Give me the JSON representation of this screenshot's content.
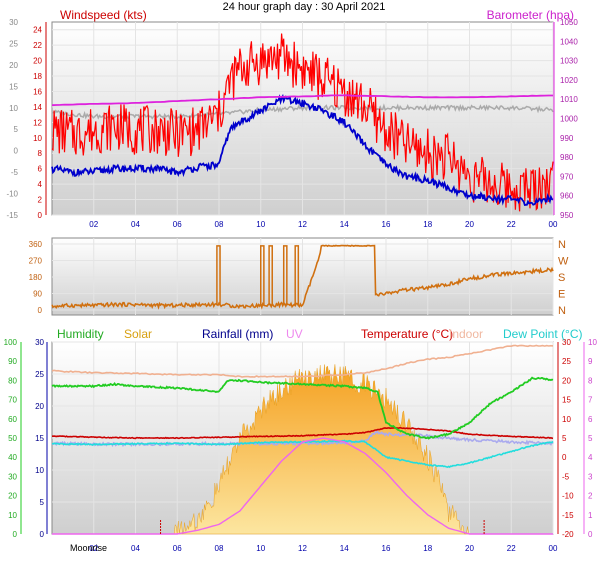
{
  "page_title": "24 hour graph day : 30 April 2021",
  "colors": {
    "wind_avg": "#0000cc",
    "wind_gust": "#ff0000",
    "pressure": "#dd22dd",
    "temperature": "#cc0000",
    "indoor": "#f0b090",
    "humidity": "#22cc22",
    "solar": "#f0b020",
    "rainfall": "#0000aa",
    "uv": "#ee66ee",
    "dewpoint": "#22dddd",
    "direction": "#d07010",
    "grey_trace": "#aaaaaa"
  },
  "chart_data": [
    {
      "type": "line",
      "panel": "wind",
      "title": "24 hour graph day : 30 April 2021",
      "legend": {
        "left": "Windspeed (kts)",
        "right": "Barometer (hpa)"
      },
      "x_ticks": [
        "02",
        "04",
        "06",
        "08",
        "10",
        "12",
        "14",
        "16",
        "18",
        "20",
        "22",
        "00"
      ],
      "x_range_hours": [
        0,
        24
      ],
      "y_left": {
        "ticks": [
          "0",
          "2",
          "4",
          "6",
          "8",
          "10",
          "12",
          "14",
          "16",
          "18",
          "20",
          "22",
          "24"
        ],
        "range": [
          0,
          25
        ]
      },
      "y_outer": {
        "ticks": [
          "-15",
          "-10",
          "-5",
          "0",
          "5",
          "10",
          "15",
          "20",
          "25",
          "30"
        ],
        "range": [
          -15,
          30
        ]
      },
      "y_right": {
        "ticks": [
          "950",
          "960",
          "970",
          "980",
          "990",
          "1000",
          "1010",
          "1020",
          "1030",
          "1040",
          "1050"
        ],
        "range": [
          950,
          1050
        ]
      },
      "series": [
        {
          "name": "Windspeed (kts)",
          "x": [
            0,
            1,
            2,
            3,
            4,
            5,
            6,
            7,
            8,
            8.5,
            9,
            10,
            11,
            12,
            13,
            14,
            15,
            16,
            17,
            18,
            19,
            20,
            21,
            22,
            23,
            24
          ],
          "values": [
            6,
            5.5,
            5.6,
            6,
            6,
            6,
            5.5,
            6.2,
            6.5,
            11,
            12,
            13.5,
            15,
            14.5,
            13.5,
            12,
            9,
            6.5,
            5,
            4.5,
            3.5,
            2.5,
            2.3,
            2,
            1.5,
            2.3
          ]
        },
        {
          "name": "gust",
          "x": [
            0,
            1,
            2,
            3,
            4,
            5,
            6,
            7,
            8,
            8.5,
            9,
            10,
            11,
            12,
            13,
            14,
            15,
            16,
            17,
            18,
            19,
            20,
            21,
            22,
            23,
            24
          ],
          "values": [
            11,
            10.5,
            11,
            11.5,
            11,
            11,
            10.5,
            11,
            13,
            17,
            19,
            20,
            20.5,
            19,
            17.5,
            16,
            14,
            11,
            9,
            8,
            7.5,
            5,
            4,
            3.5,
            3.5,
            4.5
          ]
        },
        {
          "name": "Barometer (hpa)",
          "x": [
            0,
            2,
            4,
            6,
            8,
            10,
            12,
            14,
            16,
            18,
            20,
            22,
            24
          ],
          "values": [
            1007,
            1007.5,
            1008,
            1009,
            1010,
            1011,
            1011.5,
            1012,
            1011.5,
            1011,
            1011,
            1011.5,
            1012
          ]
        },
        {
          "name": "grey",
          "x": [
            0,
            2,
            4,
            6,
            8,
            10,
            12,
            14,
            16,
            18,
            20,
            22,
            24
          ],
          "values": [
            9,
            8,
            8,
            8,
            8.5,
            9.5,
            10,
            10,
            10,
            10,
            10,
            10,
            9.5
          ]
        }
      ]
    },
    {
      "type": "line",
      "panel": "direction",
      "x_range_hours": [
        0,
        24
      ],
      "y_left": {
        "ticks": [
          "0",
          "90",
          "180",
          "270",
          "360"
        ],
        "range": [
          0,
          360
        ]
      },
      "y_right_labels": [
        "N",
        "W",
        "S",
        "E",
        "N"
      ],
      "series": [
        {
          "name": "wind direction",
          "x": [
            0,
            1,
            2,
            3,
            4,
            5,
            6,
            7,
            8,
            9,
            10,
            11,
            12,
            13,
            14,
            15,
            15.5,
            16,
            17,
            18,
            19,
            20,
            21,
            22,
            23,
            24
          ],
          "values": [
            20,
            25,
            25,
            30,
            30,
            25,
            25,
            30,
            30,
            20,
            25,
            30,
            25,
            350,
            350,
            350,
            80,
            90,
            110,
            120,
            140,
            170,
            190,
            200,
            210,
            220
          ]
        }
      ]
    },
    {
      "type": "area",
      "panel": "environment",
      "legend": [
        "Humidity",
        "Solar",
        "Rainfall (mm)",
        "UV",
        "Temperature (°C)",
        "Indoor",
        "Dew Point (°C)"
      ],
      "x_range_hours": [
        0,
        24
      ],
      "y_hum": {
        "ticks": [
          "0",
          "10",
          "20",
          "30",
          "40",
          "50",
          "60",
          "70",
          "80",
          "90",
          "100"
        ],
        "range": [
          0,
          100
        ]
      },
      "y_rain": {
        "ticks": [
          "0",
          "5",
          "10",
          "15",
          "20",
          "25",
          "30"
        ],
        "range": [
          0,
          30
        ]
      },
      "y_temp": {
        "ticks": [
          "-20",
          "-15",
          "-10",
          "-5",
          "0",
          "5",
          "10",
          "15",
          "20",
          "25",
          "30"
        ],
        "range": [
          -20,
          30
        ]
      },
      "y_uv": {
        "ticks": [
          "0",
          "1",
          "2",
          "3",
          "4",
          "5",
          "6",
          "7",
          "8",
          "9",
          "10"
        ],
        "range": [
          0,
          10
        ]
      },
      "footer_label": "Moonrise",
      "moon_ticks_x": [
        5.2,
        20.7
      ],
      "series": [
        {
          "name": "Humidity",
          "x": [
            0,
            2,
            3,
            4,
            6,
            7,
            8,
            8.4,
            9,
            10,
            12,
            14,
            15,
            15.6,
            16,
            17,
            18,
            19,
            20,
            21,
            22,
            23,
            23.5,
            24
          ],
          "values": [
            77,
            77,
            78,
            77,
            76,
            75,
            74,
            80,
            80,
            79,
            78,
            77,
            76,
            74,
            58,
            52,
            50,
            52,
            58,
            68,
            74,
            81,
            81,
            80
          ]
        },
        {
          "name": "Solar",
          "x": [
            0,
            5,
            5.8,
            6,
            7,
            7.5,
            8,
            9,
            9.5,
            10,
            11,
            12,
            13,
            14,
            15,
            15.5,
            16,
            17,
            18,
            18.5,
            19,
            19.5,
            20,
            24
          ],
          "values": [
            0,
            0,
            0,
            2,
            8,
            14,
            25,
            50,
            55,
            65,
            75,
            82,
            83,
            82,
            78,
            74,
            70,
            58,
            40,
            28,
            12,
            6,
            0,
            0
          ]
        },
        {
          "name": "Temperature (°C)",
          "x": [
            0,
            2,
            4,
            6,
            8,
            10,
            12,
            14,
            15,
            16,
            17,
            18,
            19,
            20,
            22,
            24
          ],
          "values": [
            5.5,
            5.2,
            5.0,
            5.0,
            5.2,
            5.4,
            5.6,
            6.0,
            6.4,
            7.6,
            7.6,
            7.2,
            6.8,
            6.0,
            5.4,
            5.0
          ]
        },
        {
          "name": "Indoor",
          "x": [
            0,
            2,
            4,
            6,
            8,
            9,
            10,
            12,
            14,
            15,
            16,
            17,
            18,
            19,
            20,
            21,
            22,
            23,
            24
          ],
          "values": [
            22.5,
            22,
            21.8,
            21.5,
            21.5,
            21,
            21,
            21,
            21.5,
            22,
            23,
            24.5,
            25.5,
            26,
            27,
            28,
            29,
            29,
            29
          ]
        },
        {
          "name": "Dew Point (°C)",
          "x": [
            0,
            2,
            4,
            6,
            8,
            10,
            12,
            14,
            15,
            16,
            17,
            18,
            19,
            20,
            21,
            22,
            23,
            24
          ],
          "values": [
            3.5,
            3.3,
            3.5,
            3.6,
            3.3,
            3.8,
            4.0,
            4.2,
            4.0,
            0.0,
            -1.0,
            -2.0,
            -2.5,
            -1.5,
            0.0,
            1.5,
            3.0,
            4.0
          ]
        },
        {
          "name": "UV",
          "x": [
            0,
            6,
            7,
            8,
            9,
            10,
            11,
            12,
            13,
            14,
            15,
            16,
            17,
            18,
            19,
            20,
            24
          ],
          "values": [
            0,
            0,
            0.2,
            0.5,
            1.2,
            2.5,
            3.8,
            4.8,
            5.0,
            4.8,
            4.2,
            3.2,
            2.0,
            1.0,
            0.3,
            0,
            0
          ]
        },
        {
          "name": "feels-like",
          "x": [
            0,
            2,
            4,
            6,
            8,
            10,
            12,
            14,
            15,
            15.5,
            16,
            17,
            18,
            19,
            20,
            22,
            24
          ],
          "values": [
            3.6,
            3.4,
            3.4,
            3.4,
            3.5,
            3.5,
            3.6,
            3.8,
            4.2,
            6.6,
            6.0,
            5.8,
            5.5,
            5.0,
            4.5,
            4.0,
            3.6
          ]
        }
      ]
    }
  ]
}
